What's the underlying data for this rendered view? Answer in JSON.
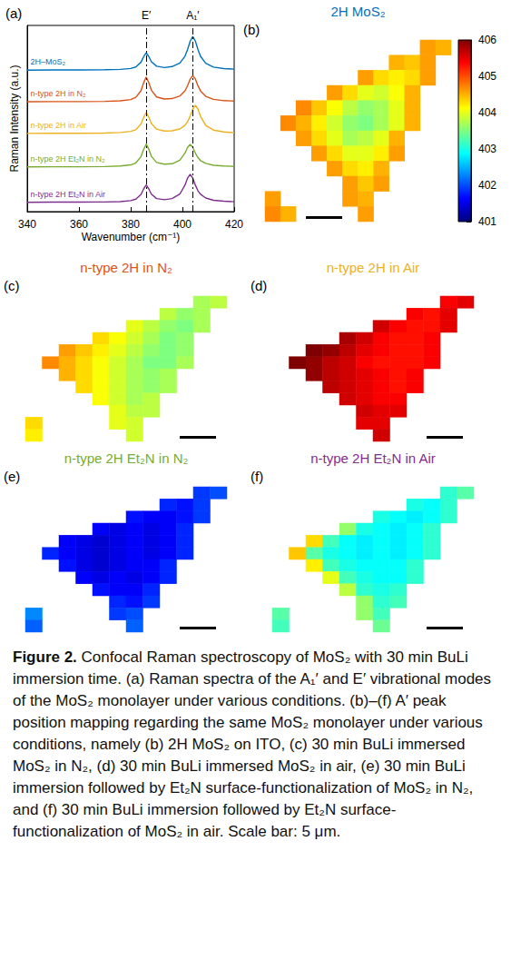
{
  "chart_data": [
    {
      "panel": "(a)",
      "type": "line",
      "x_label": "Wavenumber (cm⁻¹)",
      "y_label": "Raman Intensity (a.u.)",
      "x": [
        340,
        350,
        360,
        370,
        376,
        380,
        382,
        384,
        385,
        386,
        387,
        388,
        390,
        393,
        396,
        399,
        401,
        402,
        403,
        404,
        405,
        406,
        407,
        409,
        412,
        416,
        420
      ],
      "xlim": [
        340,
        420
      ],
      "xticks": [
        340,
        360,
        380,
        400,
        420
      ],
      "ylim": [
        0,
        10
      ],
      "tick_labels": "x",
      "grid": false,
      "series": [
        {
          "name": "2H–MoS₂",
          "color": "#0072bd",
          "values": [
            7.6,
            7.61,
            7.61,
            7.62,
            7.64,
            7.69,
            7.77,
            8.03,
            8.32,
            8.53,
            8.33,
            8.05,
            7.81,
            7.74,
            7.79,
            7.98,
            8.35,
            8.71,
            9.16,
            9.41,
            9.16,
            8.71,
            8.34,
            7.97,
            7.76,
            7.68,
            7.65
          ]
        },
        {
          "name": "n-type 2H in N₂",
          "color": "#d95319",
          "values": [
            5.9,
            5.91,
            5.91,
            5.92,
            5.95,
            6.02,
            6.14,
            6.5,
            6.92,
            7.23,
            6.92,
            6.52,
            6.16,
            6.05,
            6.07,
            6.21,
            6.49,
            6.77,
            7.12,
            7.31,
            7.12,
            6.76,
            6.48,
            6.19,
            6.03,
            5.96,
            5.94
          ]
        },
        {
          "name": "n-type 2H in Air",
          "color": "#edb120",
          "values": [
            4.2,
            4.21,
            4.21,
            4.22,
            4.25,
            4.31,
            4.4,
            4.71,
            5.06,
            5.33,
            5.07,
            4.73,
            4.43,
            4.33,
            4.34,
            4.44,
            4.64,
            4.83,
            5.13,
            5.5,
            5.71,
            5.5,
            5.12,
            4.63,
            4.38,
            4.28,
            4.24
          ]
        },
        {
          "name": "n-type 2H Et₂N in N₂",
          "color": "#77ac30",
          "values": [
            2.4,
            2.41,
            2.41,
            2.42,
            2.45,
            2.51,
            2.62,
            2.96,
            3.34,
            3.63,
            3.35,
            2.97,
            2.64,
            2.55,
            2.57,
            2.76,
            3.15,
            3.45,
            3.61,
            3.45,
            3.14,
            2.9,
            2.74,
            2.59,
            2.49,
            2.45,
            2.43
          ]
        },
        {
          "name": "n-type 2H Et₂N in Air",
          "color": "#7e2f8e",
          "values": [
            0.5,
            0.51,
            0.51,
            0.52,
            0.54,
            0.59,
            0.67,
            0.93,
            1.22,
            1.43,
            1.22,
            0.94,
            0.7,
            0.64,
            0.7,
            0.94,
            1.43,
            1.8,
            2.01,
            1.8,
            1.42,
            1.12,
            0.93,
            0.73,
            0.61,
            0.56,
            0.53
          ]
        }
      ],
      "annotations": [
        {
          "text": "E′",
          "x": 386
        },
        {
          "text": "A₁′",
          "x": 404
        }
      ]
    },
    {
      "panel": "(b)",
      "type": "heatmap",
      "title": "2H MoS₂",
      "color": "#0072bd",
      "tick_labels": false,
      "colorbar": {
        "range": [
          401,
          406
        ],
        "ticks": [
          401,
          402,
          403,
          404,
          405,
          406
        ]
      },
      "cells": [
        [
          null,
          null,
          null,
          null,
          null,
          null,
          null,
          null,
          null,
          null,
          404.6,
          404.5
        ],
        [
          null,
          null,
          null,
          null,
          null,
          null,
          null,
          null,
          404.5,
          404.4,
          404.6,
          null
        ],
        [
          null,
          null,
          null,
          null,
          null,
          null,
          404.6,
          404.3,
          404.2,
          404.3,
          404.6,
          null
        ],
        [
          null,
          null,
          null,
          null,
          404.6,
          404.3,
          404.0,
          403.9,
          404.1,
          404.5,
          null,
          null
        ],
        [
          null,
          null,
          404.7,
          404.4,
          404.1,
          403.8,
          403.6,
          403.7,
          404.0,
          404.5,
          null,
          null
        ],
        [
          null,
          404.7,
          404.5,
          404.2,
          403.9,
          403.6,
          403.5,
          403.7,
          404.0,
          404.5,
          null,
          null
        ],
        [
          null,
          null,
          404.6,
          404.3,
          404.0,
          403.7,
          403.8,
          404.0,
          404.5,
          null,
          null,
          null
        ],
        [
          null,
          null,
          null,
          404.6,
          404.3,
          404.0,
          404.0,
          404.2,
          404.6,
          null,
          null,
          null
        ],
        [
          null,
          null,
          null,
          null,
          404.6,
          404.3,
          404.2,
          404.5,
          null,
          null,
          null,
          null
        ],
        [
          null,
          null,
          null,
          null,
          null,
          404.6,
          404.4,
          404.6,
          null,
          null,
          null,
          null
        ],
        [
          404.6,
          null,
          null,
          null,
          null,
          404.6,
          404.5,
          null,
          null,
          null,
          null,
          null
        ],
        [
          404.7,
          404.5,
          null,
          null,
          null,
          null,
          404.6,
          null,
          null,
          null,
          null,
          null
        ]
      ]
    },
    {
      "panel": "(c)",
      "type": "heatmap",
      "title": "n-type 2H in N₂",
      "color": "#d95319",
      "tick_labels": false,
      "cells": [
        [
          null,
          null,
          null,
          null,
          null,
          null,
          null,
          null,
          null,
          null,
          403.7,
          403.8
        ],
        [
          null,
          null,
          null,
          null,
          null,
          null,
          null,
          null,
          403.8,
          403.6,
          403.7,
          null
        ],
        [
          null,
          null,
          null,
          null,
          null,
          null,
          404.0,
          403.8,
          403.6,
          403.5,
          403.7,
          null
        ],
        [
          null,
          null,
          null,
          null,
          404.3,
          404.1,
          403.9,
          403.7,
          403.5,
          403.6,
          null,
          null
        ],
        [
          null,
          null,
          404.6,
          404.4,
          404.2,
          404.0,
          403.8,
          403.6,
          403.5,
          403.6,
          null,
          null
        ],
        [
          null,
          404.7,
          404.5,
          404.3,
          404.1,
          403.9,
          403.7,
          403.5,
          403.5,
          403.7,
          null,
          null
        ],
        [
          null,
          null,
          404.5,
          404.3,
          404.1,
          403.9,
          403.7,
          403.6,
          403.7,
          null,
          null,
          null
        ],
        [
          null,
          null,
          null,
          404.3,
          404.1,
          403.9,
          403.7,
          403.6,
          403.7,
          null,
          null,
          null
        ],
        [
          null,
          null,
          null,
          null,
          404.1,
          403.9,
          403.7,
          403.8,
          null,
          null,
          null,
          null
        ],
        [
          null,
          null,
          null,
          null,
          null,
          404.0,
          403.8,
          403.8,
          null,
          null,
          null,
          null
        ],
        [
          404.3,
          null,
          null,
          null,
          null,
          404.0,
          403.9,
          null,
          null,
          null,
          null,
          null
        ],
        [
          404.2,
          null,
          null,
          null,
          null,
          null,
          403.9,
          null,
          null,
          null,
          null,
          null
        ]
      ]
    },
    {
      "panel": "(d)",
      "type": "heatmap",
      "title": "n-type 2H in Air",
      "color": "#edb120",
      "tick_labels": false,
      "cells": [
        [
          null,
          null,
          null,
          null,
          null,
          null,
          null,
          null,
          null,
          null,
          405.4,
          405.5
        ],
        [
          null,
          null,
          null,
          null,
          null,
          null,
          null,
          null,
          405.4,
          405.3,
          405.5,
          null
        ],
        [
          null,
          null,
          null,
          null,
          null,
          null,
          405.6,
          405.4,
          405.3,
          405.3,
          405.5,
          null
        ],
        [
          null,
          null,
          null,
          null,
          405.8,
          405.6,
          405.4,
          405.3,
          405.3,
          405.4,
          null,
          null
        ],
        [
          null,
          null,
          406.0,
          405.9,
          405.7,
          405.5,
          405.4,
          405.3,
          405.3,
          405.4,
          null,
          null
        ],
        [
          null,
          406.0,
          405.9,
          405.7,
          405.6,
          405.4,
          405.3,
          405.3,
          405.3,
          405.4,
          null,
          null
        ],
        [
          null,
          null,
          405.9,
          405.7,
          405.6,
          405.5,
          405.4,
          405.3,
          405.4,
          null,
          null,
          null
        ],
        [
          null,
          null,
          null,
          405.7,
          405.6,
          405.5,
          405.4,
          405.3,
          405.4,
          null,
          null,
          null
        ],
        [
          null,
          null,
          null,
          null,
          405.6,
          405.5,
          405.4,
          405.4,
          null,
          null,
          null,
          null
        ],
        [
          null,
          null,
          null,
          null,
          null,
          405.6,
          405.5,
          405.5,
          null,
          null,
          null,
          null
        ],
        [
          null,
          null,
          null,
          null,
          null,
          405.5,
          405.5,
          null,
          null,
          null,
          null,
          null
        ],
        [
          null,
          null,
          null,
          null,
          null,
          null,
          405.6,
          null,
          null,
          null,
          null,
          null
        ]
      ]
    },
    {
      "panel": "(e)",
      "type": "heatmap",
      "title": "n-type 2H Et₂N in N₂",
      "color": "#77ac30",
      "tick_labels": false,
      "cells": [
        [
          null,
          null,
          null,
          null,
          null,
          null,
          null,
          null,
          null,
          null,
          401.9,
          402.0
        ],
        [
          null,
          null,
          null,
          null,
          null,
          null,
          null,
          null,
          401.8,
          401.7,
          401.9,
          null
        ],
        [
          null,
          null,
          null,
          null,
          null,
          null,
          401.7,
          401.6,
          401.6,
          401.7,
          401.9,
          null
        ],
        [
          null,
          null,
          null,
          null,
          401.6,
          401.5,
          401.6,
          401.5,
          401.6,
          401.8,
          null,
          null
        ],
        [
          null,
          null,
          401.6,
          401.5,
          401.4,
          401.5,
          401.6,
          401.5,
          401.6,
          401.8,
          null,
          null
        ],
        [
          null,
          401.8,
          401.6,
          401.5,
          401.4,
          401.5,
          401.6,
          401.5,
          401.6,
          401.8,
          null,
          null
        ],
        [
          null,
          null,
          401.7,
          401.5,
          401.4,
          401.5,
          401.6,
          401.6,
          401.8,
          null,
          null,
          null
        ],
        [
          null,
          null,
          null,
          401.6,
          401.5,
          401.6,
          401.5,
          401.6,
          401.8,
          null,
          null,
          null
        ],
        [
          null,
          null,
          null,
          null,
          401.7,
          401.6,
          401.6,
          401.8,
          null,
          null,
          null,
          null
        ],
        [
          null,
          null,
          null,
          null,
          null,
          401.8,
          401.7,
          401.9,
          null,
          null,
          null,
          null
        ],
        [
          402.3,
          null,
          null,
          null,
          null,
          401.9,
          402.0,
          null,
          null,
          null,
          null,
          null
        ],
        [
          402.1,
          null,
          null,
          null,
          null,
          null,
          402.1,
          null,
          null,
          null,
          null,
          null
        ]
      ]
    },
    {
      "panel": "(f)",
      "type": "heatmap",
      "title": "n-type 2H Et₂N in Air",
      "color": "#7e2f8e",
      "tick_labels": false,
      "cells": [
        [
          null,
          null,
          null,
          null,
          null,
          null,
          null,
          null,
          null,
          null,
          403.1,
          403.3
        ],
        [
          null,
          null,
          null,
          null,
          null,
          null,
          null,
          null,
          403.0,
          402.9,
          403.1,
          null
        ],
        [
          null,
          null,
          null,
          null,
          null,
          null,
          403.0,
          402.9,
          402.8,
          402.9,
          403.1,
          null
        ],
        [
          null,
          null,
          null,
          null,
          403.6,
          403.0,
          402.9,
          402.8,
          402.9,
          403.1,
          null,
          null
        ],
        [
          null,
          null,
          404.3,
          403.2,
          402.9,
          402.8,
          402.9,
          402.8,
          402.9,
          403.1,
          null,
          null
        ],
        [
          null,
          404.4,
          403.3,
          403.0,
          402.9,
          402.8,
          402.9,
          402.8,
          402.9,
          403.1,
          null,
          null
        ],
        [
          null,
          null,
          404.2,
          403.2,
          403.0,
          402.9,
          402.9,
          402.9,
          403.1,
          null,
          null,
          null
        ],
        [
          null,
          null,
          null,
          404.0,
          403.2,
          403.0,
          402.9,
          402.9,
          403.1,
          null,
          null,
          null
        ],
        [
          null,
          null,
          null,
          null,
          403.8,
          403.1,
          403.0,
          403.1,
          null,
          null,
          null,
          null
        ],
        [
          null,
          null,
          null,
          null,
          null,
          403.6,
          403.1,
          403.2,
          null,
          null,
          null,
          null
        ],
        [
          403.3,
          null,
          null,
          null,
          null,
          403.6,
          403.2,
          null,
          null,
          null,
          null,
          null
        ],
        [
          403.2,
          null,
          null,
          null,
          null,
          null,
          403.4,
          null,
          null,
          null,
          null,
          null
        ]
      ]
    }
  ],
  "caption": {
    "label": "Figure 2.",
    "text": "Confocal Raman spectroscopy of MoS₂ with 30 min BuLi immersion time. (a) Raman spectra of the A₁′ and E′ vibrational modes of the MoS₂ monolayer under various conditions. (b)–(f) A′ peak position mapping regarding the same MoS₂ monolayer under various conditions, namely (b) 2H MoS₂ on ITO, (c) 30 min BuLi immersed MoS₂ in N₂, (d) 30 min BuLi immersed MoS₂ in air, (e) 30 min BuLi immersion followed by Et₂N surface-functionalization of MoS₂ in N₂, and (f) 30 min BuLi immersion followed by Et₂N surface-functionalization of MoS₂ in air. Scale bar: 5 μm."
  }
}
